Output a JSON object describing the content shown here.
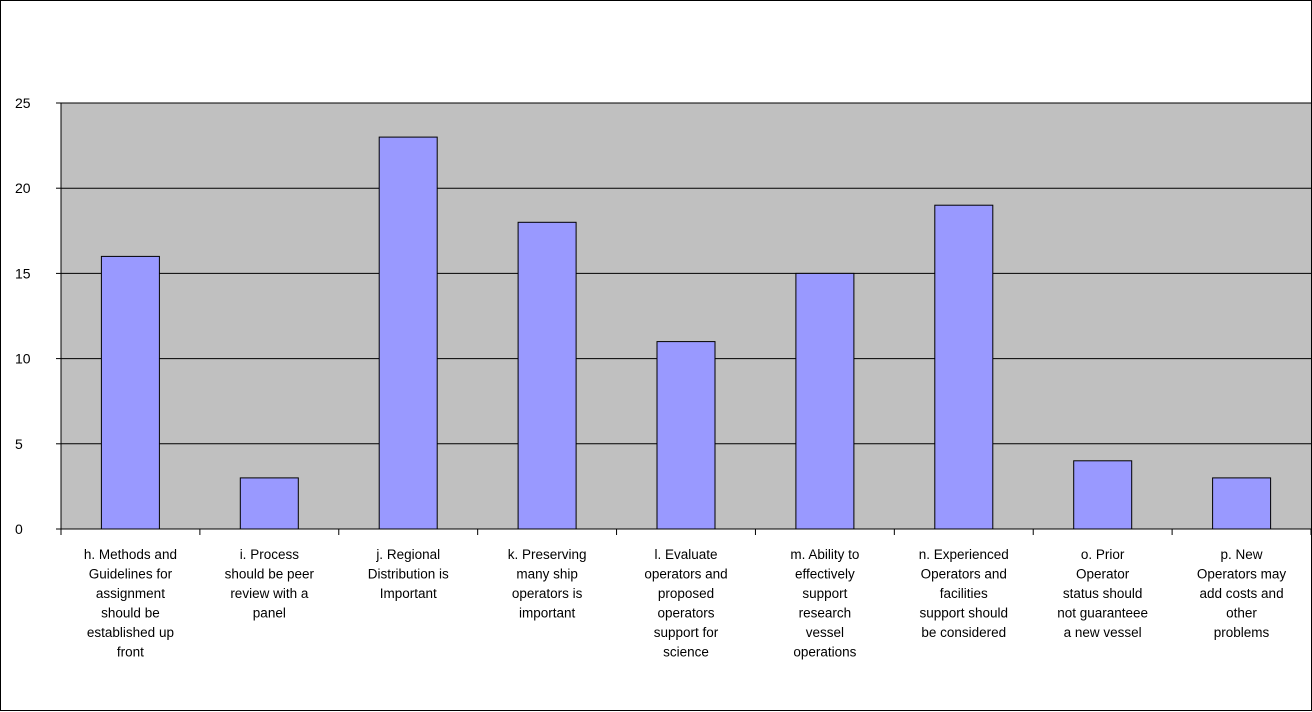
{
  "chart_data": {
    "type": "bar",
    "title": "",
    "xlabel": "",
    "ylabel": "",
    "ylim": [
      0,
      25
    ],
    "ytick_step": 5,
    "y_tick_labels": [
      "0",
      "5",
      "10",
      "15",
      "20",
      "25"
    ],
    "grid": true,
    "legend": "none",
    "colors": {
      "plot_background": "#c0c0c0",
      "bar_fill": "#9999ff",
      "bar_stroke": "#000000",
      "gridline": "#000000"
    },
    "categories": [
      [
        "h. Methods and",
        "Guidelines for",
        "assignment",
        "should be",
        "established up",
        "front"
      ],
      [
        "i. Process",
        "should be peer",
        "review with a",
        "panel"
      ],
      [
        "j. Regional",
        "Distribution is",
        "Important"
      ],
      [
        "k. Preserving",
        "many ship",
        "operators is",
        "important"
      ],
      [
        "l. Evaluate",
        "operators and",
        "proposed",
        "operators",
        "support for",
        "science"
      ],
      [
        "m. Ability to",
        "effectively",
        "support",
        "research",
        "vessel",
        "operations"
      ],
      [
        "n. Experienced",
        "Operators and",
        "facilities",
        "support should",
        "be considered"
      ],
      [
        "o. Prior",
        "Operator",
        "status should",
        "not guaranteee",
        "a new vessel"
      ],
      [
        "p. New",
        "Operators may",
        "add costs and",
        "other",
        "problems"
      ]
    ],
    "values": [
      16,
      3,
      23,
      18,
      11,
      15,
      19,
      4,
      3
    ]
  }
}
